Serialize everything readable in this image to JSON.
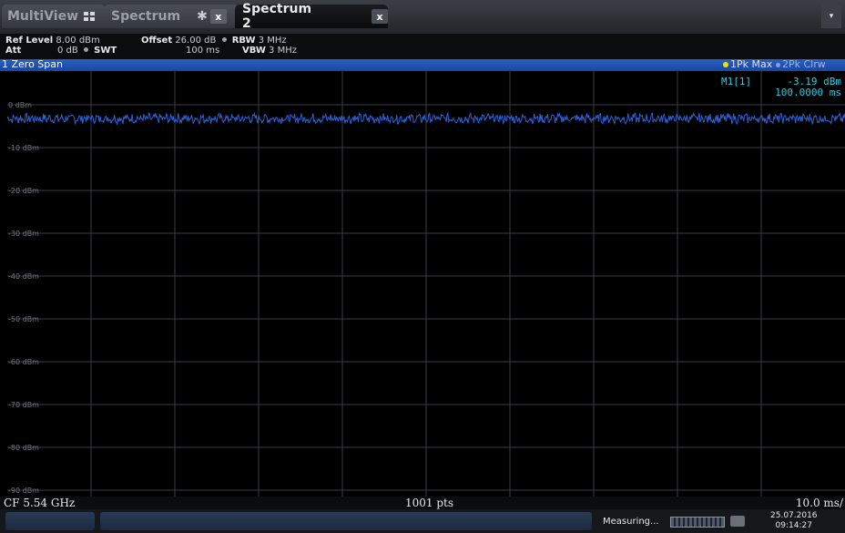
{
  "tabs": [
    {
      "label": "MultiView",
      "icon": "grid-icon"
    },
    {
      "label": "Spectrum",
      "icon": "star-icon",
      "close": "x"
    },
    {
      "label": "Spectrum 2",
      "close": "x"
    }
  ],
  "menu_icon": "▾",
  "params": {
    "ref_level_label": "Ref Level",
    "ref_level_value": "8.00 dBm",
    "offset_label": "Offset",
    "offset_value": "26.00 dB",
    "rbw_label": "RBW",
    "rbw_value": "3 MHz",
    "att_label": "Att",
    "att_value": "0 dB",
    "swt_label": "SWT",
    "swt_value": "100 ms",
    "vbw_label": "VBW",
    "vbw_value": "3 MHz"
  },
  "window": {
    "title": "1 Zero Span",
    "trace1": "1Pk Max",
    "trace2": "2Pk Clrw"
  },
  "marker": {
    "label": "M1[1]",
    "value": "-3.19 dBm",
    "time": "100.0000 ms"
  },
  "y_labels": [
    "0 dBm",
    "-10 dBm",
    "-20 dBm",
    "-30 dBm",
    "-40 dBm",
    "-50 dBm",
    "-60 dBm",
    "-70 dBm",
    "-80 dBm",
    "-90 dBm"
  ],
  "footer": {
    "cf": "CF 5.54 GHz",
    "pts": "1001 pts",
    "div": "10.0 ms/"
  },
  "status": {
    "measuring": "Measuring...",
    "date": "25.07.2016",
    "time": "09:14:27"
  },
  "colors": {
    "trace": "#2e62d8",
    "marker_text": "#28d0e6",
    "grid": "#3a3d42",
    "title_bar": "#1f4fb0"
  },
  "chart_data": {
    "type": "line",
    "title": "1 Zero Span",
    "xlabel": "",
    "ylabel": "",
    "ylim": [
      -90,
      8
    ],
    "yticks": [
      0,
      -10,
      -20,
      -30,
      -40,
      -50,
      -60,
      -70,
      -80,
      -90
    ],
    "xlim": [
      0,
      100
    ],
    "x_unit": "ms",
    "grid": true,
    "series": [
      {
        "name": "1Pk Max",
        "level": -3.2,
        "ripple": 1.0,
        "points": 1001
      }
    ],
    "marker": {
      "name": "M1[1]",
      "x": 100.0,
      "y": -3.19
    }
  }
}
